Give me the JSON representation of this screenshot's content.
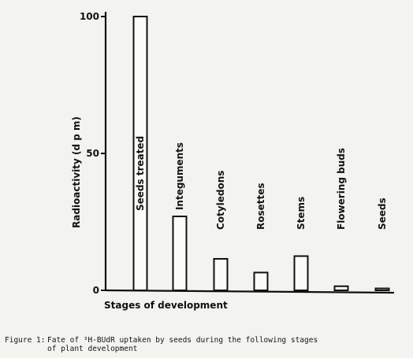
{
  "chart_data": {
    "type": "bar",
    "categories": [
      "Seeds treated",
      "Integuments",
      "Cotyledons",
      "Rosettes",
      "Stems",
      "Flowering buds",
      "Seeds"
    ],
    "values": [
      100,
      27,
      11.5,
      6.5,
      12.5,
      1.5,
      0.7
    ],
    "xlabel": "Stages of development",
    "ylabel": "Radioactivity (d p m)",
    "ylim": [
      0,
      100
    ],
    "yticks": [
      0,
      50,
      100
    ],
    "grid": false,
    "legend": "none"
  },
  "caption": {
    "label": "Figure 1:",
    "text_line_1": "Fate of ³H-BUdR uptaken by seeds during the following stages",
    "text_line_2": "of plant development"
  }
}
